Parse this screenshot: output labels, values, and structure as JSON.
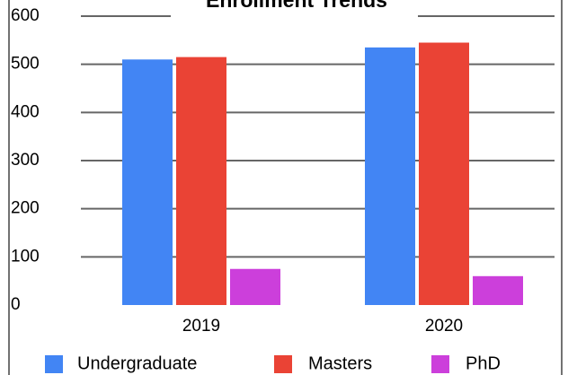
{
  "chart_data": {
    "type": "bar",
    "title": "Enrollment Trends",
    "categories": [
      "2019",
      "2020"
    ],
    "series": [
      {
        "name": "Undergraduate",
        "color": "#4285f4",
        "values": [
          510,
          535
        ]
      },
      {
        "name": "Masters",
        "color": "#ea4335",
        "values": [
          515,
          545
        ]
      },
      {
        "name": "PhD",
        "color": "#cc3fdb",
        "values": [
          75,
          60
        ]
      }
    ],
    "ylim": [
      0,
      600
    ],
    "yticks": [
      0,
      100,
      200,
      300,
      400,
      500,
      600
    ],
    "grid": true
  }
}
